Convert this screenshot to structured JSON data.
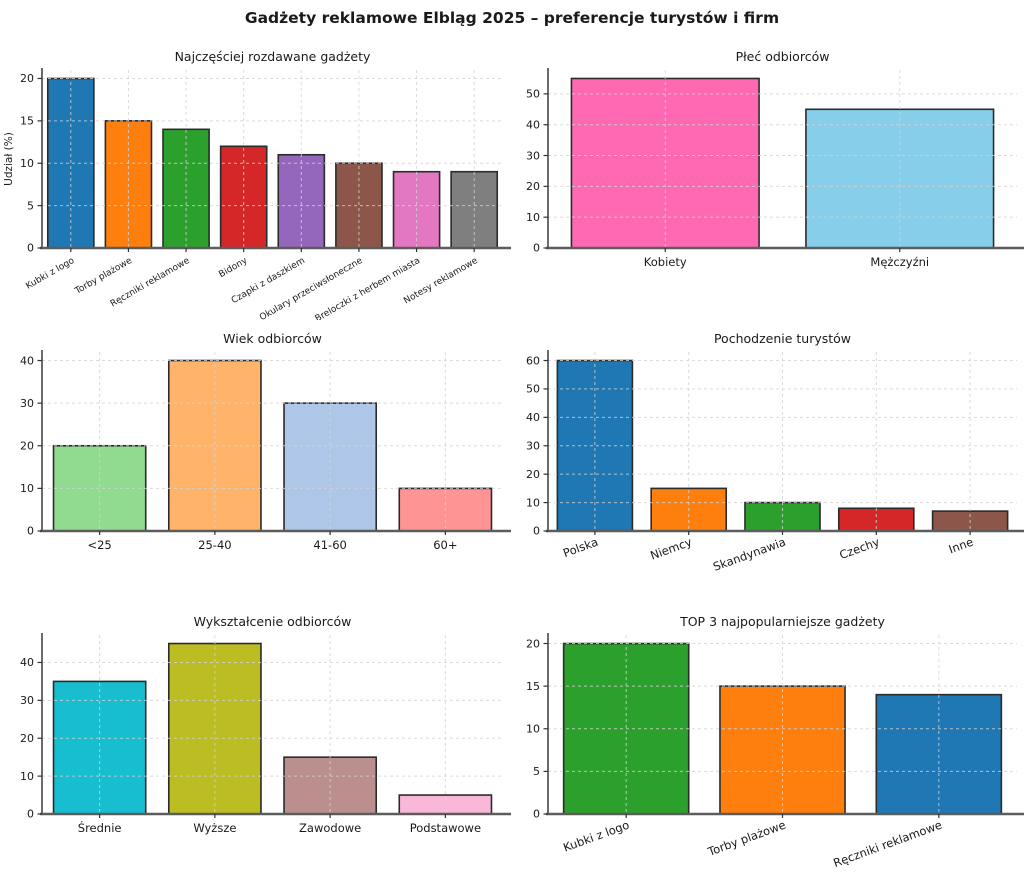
{
  "page_title": "Gadżety reklamowe Elbląg 2025 – preferencje turystów i firm",
  "style": {
    "background": "#ffffff",
    "grid_color": "#d4d4d4",
    "bar_edge_color": "#2b2b2b",
    "left_spine_color": "#3a3a3a",
    "bottom_spine_color": "#5c5c5c",
    "tick_color": "#333333",
    "text_color": "#1a1a1a"
  },
  "chart_data": [
    {
      "type": "bar",
      "title": "Najczęściej rozdawane gadżety",
      "ylabel": "Udział (%)",
      "xlabel": "",
      "categories": [
        "Kubki z logo",
        "Torby plażowe",
        "Ręczniki reklamowe",
        "Bidony",
        "Czapki z daszkiem",
        "Okulary przeciwsłoneczne",
        "Breloczki z herbem miasta",
        "Notesy reklamowe"
      ],
      "values": [
        20,
        15,
        14,
        12,
        11,
        10,
        9,
        9
      ],
      "colors": [
        "#1f77b4",
        "#ff7f0e",
        "#2ca02c",
        "#d62728",
        "#9467bd",
        "#8c564b",
        "#e377c2",
        "#7f7f7f"
      ],
      "yticks": [
        0,
        5,
        10,
        15,
        20
      ],
      "ylim": [
        0,
        21
      ],
      "label_rotation": 30,
      "grid": true,
      "legend": false
    },
    {
      "type": "bar",
      "title": "Płeć odbiorców",
      "ylabel": "",
      "xlabel": "",
      "categories": [
        "Kobiety",
        "Mężczyźni"
      ],
      "values": [
        55,
        45
      ],
      "colors": [
        "#ff69b4",
        "#87ceeb"
      ],
      "yticks": [
        0,
        10,
        20,
        30,
        40,
        50
      ],
      "ylim": [
        0,
        57.75
      ],
      "label_rotation": 0,
      "grid": true,
      "legend": false
    },
    {
      "type": "bar",
      "title": "Wiek odbiorców",
      "ylabel": "",
      "xlabel": "",
      "categories": [
        "<25",
        "25-40",
        "41-60",
        "60+"
      ],
      "values": [
        20,
        40,
        30,
        10
      ],
      "colors": [
        "#90db90",
        "#ffb469",
        "#aec7e8",
        "#ff9494"
      ],
      "yticks": [
        0,
        10,
        20,
        30,
        40
      ],
      "ylim": [
        0,
        42
      ],
      "label_rotation": 0,
      "grid": true,
      "legend": false
    },
    {
      "type": "bar",
      "title": "Pochodzenie turystów",
      "ylabel": "",
      "xlabel": "",
      "categories": [
        "Polska",
        "Niemcy",
        "Skandynawia",
        "Czechy",
        "Inne"
      ],
      "values": [
        60,
        15,
        10,
        8,
        7
      ],
      "colors": [
        "#1f77b4",
        "#ff7f0e",
        "#2ca02c",
        "#d62728",
        "#8c564b"
      ],
      "yticks": [
        0,
        10,
        20,
        30,
        40,
        50,
        60
      ],
      "ylim": [
        0,
        63
      ],
      "label_rotation": 20,
      "grid": true,
      "legend": false
    },
    {
      "type": "bar",
      "title": "Wykształcenie odbiorców",
      "ylabel": "",
      "xlabel": "",
      "categories": [
        "Średnie",
        "Wyższe",
        "Zawodowe",
        "Podstawowe"
      ],
      "values": [
        35,
        45,
        15,
        5
      ],
      "colors": [
        "#17becf",
        "#bcbd22",
        "#bc8f8f",
        "#f9b8d8"
      ],
      "yticks": [
        0,
        10,
        20,
        30,
        40
      ],
      "ylim": [
        0,
        47.25
      ],
      "label_rotation": 0,
      "grid": true,
      "legend": false
    },
    {
      "type": "bar",
      "title": "TOP 3 najpopularniejsze gadżety",
      "ylabel": "",
      "xlabel": "",
      "categories": [
        "Kubki z logo",
        "Torby plażowe",
        "Ręczniki reklamowe"
      ],
      "values": [
        20,
        15,
        14
      ],
      "colors": [
        "#2ca02c",
        "#ff7f0e",
        "#1f77b4"
      ],
      "yticks": [
        0,
        5,
        10,
        15,
        20
      ],
      "ylim": [
        0,
        21
      ],
      "label_rotation": 20,
      "grid": true,
      "legend": false
    }
  ]
}
